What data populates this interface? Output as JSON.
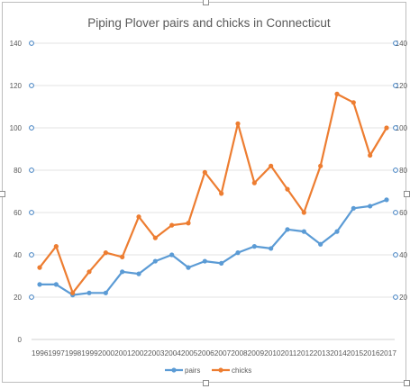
{
  "chart_data": {
    "type": "line",
    "title": "Piping Plover pairs and chicks in Connecticut",
    "xlabel": "",
    "ylabel": "",
    "categories": [
      "1996",
      "1997",
      "1998",
      "1999",
      "2000",
      "2001",
      "2002",
      "2003",
      "2004",
      "2005",
      "2006",
      "2007",
      "2008",
      "2009",
      "2010",
      "2011",
      "2012",
      "2013",
      "2014",
      "2015",
      "2016",
      "2017"
    ],
    "series": [
      {
        "name": "pairs",
        "color": "#5b9bd5",
        "values": [
          26,
          26,
          21,
          22,
          22,
          32,
          31,
          37,
          40,
          34,
          37,
          36,
          41,
          44,
          43,
          52,
          51,
          45,
          51,
          62,
          63,
          66
        ]
      },
      {
        "name": "chicks",
        "color": "#ed7d31",
        "values": [
          34,
          44,
          22,
          32,
          41,
          39,
          58,
          48,
          54,
          55,
          79,
          69,
          102,
          74,
          82,
          71,
          60,
          82,
          116,
          112,
          87,
          100
        ]
      }
    ],
    "ylim": [
      0,
      140
    ],
    "yticks": [
      0,
      20,
      40,
      60,
      80,
      100,
      120,
      140
    ],
    "left_axis_labels": [
      "0",
      "20",
      "40",
      "60",
      "80",
      "100",
      "120",
      "140"
    ],
    "right_axis_labels": [
      "20",
      "40",
      "60",
      "80",
      "100",
      "120",
      "140"
    ],
    "grid": true,
    "legend_position": "bottom"
  }
}
